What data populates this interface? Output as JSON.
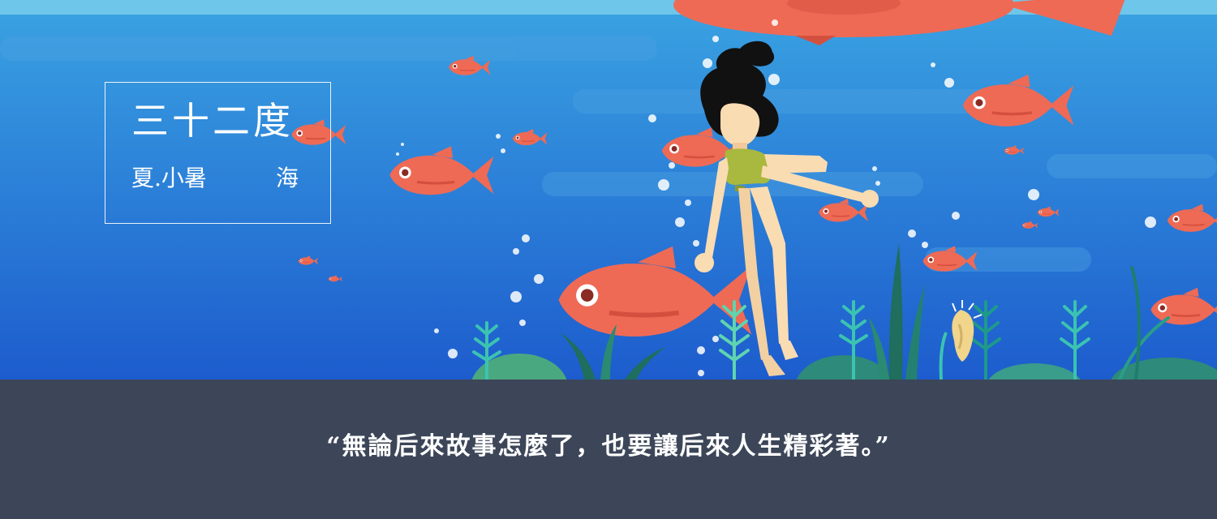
{
  "title_card": {
    "title": "三十二度",
    "author": "夏.小暑",
    "topic": "海"
  },
  "caption": {
    "quote": "“無論后來故事怎麼了，也要讓后來人生精彩著。”"
  },
  "colors": {
    "sea_top": "#3aa0e0",
    "sea_bottom": "#1f5fcf",
    "fish": "#ee6a55",
    "caption_bg": "#3c4658",
    "swimsuit": "#a9b83e",
    "hair": "#111111",
    "skin": "#fadcb2"
  }
}
